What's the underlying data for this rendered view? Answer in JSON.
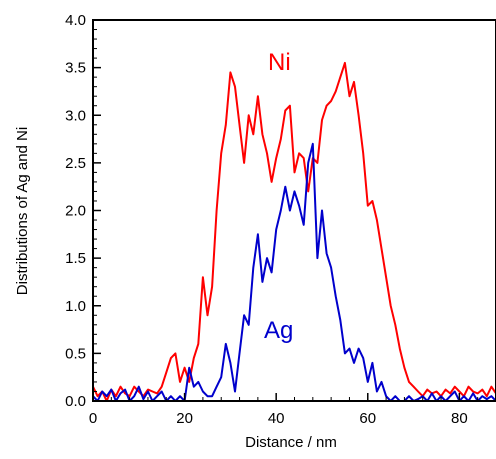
{
  "chart_data": {
    "type": "line",
    "title": "",
    "xlabel": "Distance / nm",
    "ylabel": "Distributions of Ag and Ni",
    "xlim": [
      0,
      88
    ],
    "ylim": [
      0,
      4.0
    ],
    "x_ticks": [
      "0",
      "20",
      "40",
      "60",
      "80"
    ],
    "y_ticks": [
      "0.0",
      "0.5",
      "1.0",
      "1.5",
      "2.0",
      "2.5",
      "3.0",
      "3.5",
      "4.0"
    ],
    "grid": false,
    "legend": "none",
    "series": [
      {
        "name": "Ni",
        "color": "#ff0000",
        "x": [
          0,
          1,
          2,
          3,
          4,
          5,
          6,
          7,
          8,
          9,
          10,
          11,
          12,
          13,
          14,
          15,
          16,
          17,
          18,
          19,
          20,
          21,
          22,
          23,
          24,
          25,
          26,
          27,
          28,
          29,
          30,
          31,
          32,
          33,
          34,
          35,
          36,
          37,
          38,
          39,
          40,
          41,
          42,
          43,
          44,
          45,
          46,
          47,
          48,
          49,
          50,
          51,
          52,
          53,
          54,
          55,
          56,
          57,
          58,
          59,
          60,
          61,
          62,
          63,
          64,
          65,
          66,
          67,
          68,
          69,
          70,
          71,
          72,
          73,
          74,
          75,
          76,
          77,
          78,
          79,
          80,
          81,
          82,
          83,
          84,
          85,
          86,
          87,
          88
        ],
        "y": [
          0.15,
          0.05,
          0.1,
          0.0,
          0.12,
          0.05,
          0.15,
          0.08,
          0.05,
          0.15,
          0.1,
          0.05,
          0.12,
          0.1,
          0.08,
          0.15,
          0.3,
          0.45,
          0.5,
          0.2,
          0.35,
          0.2,
          0.45,
          0.6,
          1.3,
          0.9,
          1.2,
          2.0,
          2.6,
          2.9,
          3.45,
          3.3,
          2.9,
          2.5,
          3.0,
          2.8,
          3.2,
          2.8,
          2.6,
          2.3,
          2.55,
          2.75,
          3.05,
          3.1,
          2.4,
          2.6,
          2.55,
          2.2,
          2.55,
          2.5,
          2.95,
          3.1,
          3.15,
          3.25,
          3.4,
          3.55,
          3.2,
          3.35,
          3.0,
          2.6,
          2.05,
          2.1,
          1.9,
          1.6,
          1.3,
          1.0,
          0.8,
          0.55,
          0.35,
          0.2,
          0.15,
          0.1,
          0.05,
          0.12,
          0.08,
          0.1,
          0.05,
          0.12,
          0.08,
          0.15,
          0.1,
          0.05,
          0.15,
          0.1,
          0.08,
          0.12,
          0.05,
          0.15,
          0.08
        ]
      },
      {
        "name": "Ag",
        "color": "#0000cc",
        "x": [
          0,
          1,
          2,
          3,
          4,
          5,
          6,
          7,
          8,
          9,
          10,
          11,
          12,
          13,
          14,
          15,
          16,
          17,
          18,
          19,
          20,
          21,
          22,
          23,
          24,
          25,
          26,
          27,
          28,
          29,
          30,
          31,
          32,
          33,
          34,
          35,
          36,
          37,
          38,
          39,
          40,
          41,
          42,
          43,
          44,
          45,
          46,
          47,
          48,
          49,
          50,
          51,
          52,
          53,
          54,
          55,
          56,
          57,
          58,
          59,
          60,
          61,
          62,
          63,
          64,
          65,
          66,
          67,
          68,
          69,
          70,
          71,
          72,
          73,
          74,
          75,
          76,
          77,
          78,
          79,
          80,
          81,
          82,
          83,
          84,
          85,
          86,
          87,
          88
        ],
        "y": [
          0.05,
          0.0,
          0.1,
          0.05,
          0.12,
          0.0,
          0.08,
          0.12,
          0.0,
          0.05,
          0.15,
          0.02,
          0.1,
          0.0,
          0.05,
          0.1,
          0.0,
          0.05,
          0.0,
          0.05,
          0.0,
          0.35,
          0.15,
          0.2,
          0.1,
          0.05,
          0.05,
          0.15,
          0.25,
          0.6,
          0.4,
          0.1,
          0.5,
          0.9,
          0.8,
          1.4,
          1.75,
          1.25,
          1.5,
          1.35,
          1.8,
          2.0,
          2.25,
          2.0,
          2.2,
          2.05,
          1.85,
          2.5,
          2.7,
          1.5,
          2.0,
          1.55,
          1.4,
          1.1,
          0.85,
          0.5,
          0.55,
          0.4,
          0.55,
          0.45,
          0.2,
          0.4,
          0.1,
          0.2,
          0.05,
          0.0,
          0.05,
          0.0,
          0.0,
          0.05,
          0.0,
          0.02,
          0.05,
          0.0,
          0.08,
          0.0,
          0.05,
          0.0,
          0.05,
          0.1,
          0.0,
          0.05,
          0.0,
          0.08,
          0.0,
          0.05,
          0.02,
          0.05,
          0.0
        ]
      }
    ]
  }
}
